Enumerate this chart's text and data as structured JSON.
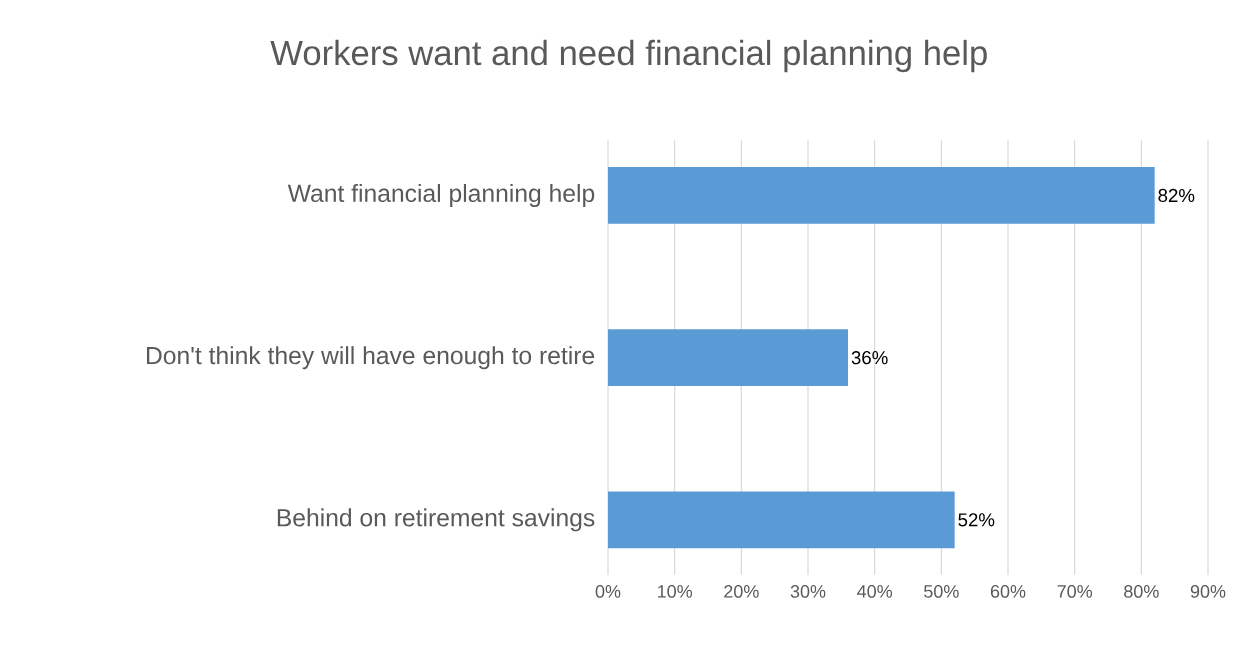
{
  "chart_data": {
    "type": "bar",
    "orientation": "horizontal",
    "title": "Workers want and need financial planning help",
    "categories": [
      "Want financial planning help",
      "Don't think they will have enough to retire",
      "Behind on retirement savings"
    ],
    "values": [
      82,
      36,
      52
    ],
    "value_labels": [
      "82%",
      "36%",
      "52%"
    ],
    "color": "#5b9bd5",
    "xlim": [
      0,
      90
    ],
    "xticks": [
      {
        "value": 0,
        "label": "0%"
      },
      {
        "value": 10,
        "label": "10%"
      },
      {
        "value": 20,
        "label": "20%"
      },
      {
        "value": 30,
        "label": "30%"
      },
      {
        "value": 40,
        "label": "40%"
      },
      {
        "value": 50,
        "label": "50%"
      },
      {
        "value": 60,
        "label": "60%"
      },
      {
        "value": 70,
        "label": "70%"
      },
      {
        "value": 80,
        "label": "80%"
      },
      {
        "value": 90,
        "label": "90%"
      }
    ],
    "grid": "x"
  }
}
